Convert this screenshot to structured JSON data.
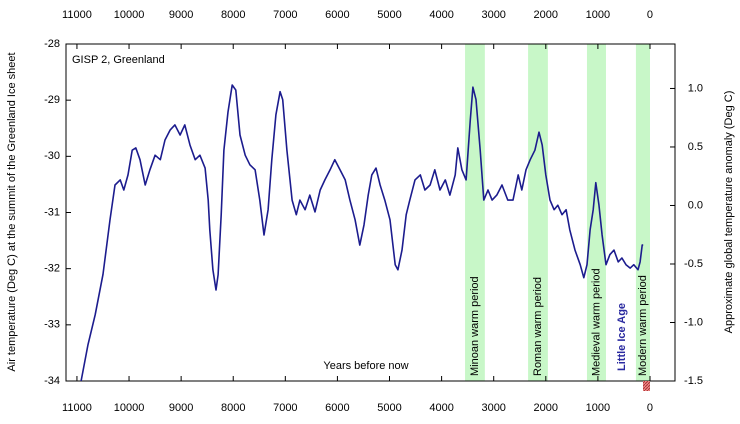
{
  "chart_data": {
    "type": "line",
    "annotation": "GISP 2, Greenland",
    "x_label": "Years before now",
    "y_label": "Air temperature (Deg C) at the summit of the Greenland Ice sheet",
    "y2_label": "Approximate global temperature anomaly (Deg C)",
    "color": "#1c1c8e",
    "band_color": "#c8f7c8",
    "x": [
      10920,
      10790,
      10650,
      10500,
      10365,
      10270,
      10170,
      10100,
      10020,
      9940,
      9870,
      9790,
      9690,
      9600,
      9500,
      9400,
      9310,
      9210,
      9120,
      9020,
      8930,
      8830,
      8730,
      8640,
      8540,
      8480,
      8450,
      8390,
      8330,
      8290,
      8230,
      8180,
      8100,
      8020,
      7950,
      7870,
      7770,
      7680,
      7580,
      7490,
      7410,
      7330,
      7260,
      7180,
      7100,
      7050,
      6970,
      6870,
      6790,
      6720,
      6620,
      6530,
      6430,
      6330,
      6240,
      6140,
      6050,
      5950,
      5850,
      5760,
      5660,
      5570,
      5490,
      5410,
      5340,
      5260,
      5180,
      5090,
      4990,
      4890,
      4840,
      4760,
      4680,
      4610,
      4510,
      4410,
      4320,
      4220,
      4130,
      4030,
      3930,
      3840,
      3740,
      3690,
      3610,
      3530,
      3450,
      3400,
      3340,
      3260,
      3190,
      3110,
      3030,
      2940,
      2840,
      2730,
      2630,
      2530,
      2460,
      2380,
      2300,
      2210,
      2130,
      2070,
      2000,
      1920,
      1840,
      1770,
      1690,
      1610,
      1540,
      1440,
      1340,
      1270,
      1210,
      1150,
      1090,
      1040,
      980,
      920,
      845,
      770,
      690,
      610,
      540,
      460,
      380,
      310,
      230,
      190,
      150,
      130
    ],
    "values": [
      -34.0,
      -33.36,
      -32.82,
      -32.1,
      -31.13,
      -30.51,
      -30.42,
      -30.6,
      -30.33,
      -29.89,
      -29.85,
      -30.06,
      -30.51,
      -30.24,
      -29.98,
      -30.06,
      -29.71,
      -29.53,
      -29.44,
      -29.62,
      -29.44,
      -29.8,
      -30.06,
      -29.98,
      -30.21,
      -30.78,
      -31.31,
      -32.02,
      -32.38,
      -32.11,
      -31.04,
      -29.89,
      -29.21,
      -28.73,
      -28.82,
      -29.62,
      -29.98,
      -30.15,
      -30.24,
      -30.78,
      -31.4,
      -30.95,
      -30.06,
      -29.26,
      -28.85,
      -28.99,
      -29.89,
      -30.78,
      -31.04,
      -30.78,
      -30.95,
      -30.69,
      -30.99,
      -30.6,
      -30.42,
      -30.24,
      -30.06,
      -30.24,
      -30.42,
      -30.78,
      -31.13,
      -31.58,
      -31.22,
      -30.69,
      -30.33,
      -30.21,
      -30.51,
      -30.78,
      -31.13,
      -31.93,
      -32.02,
      -31.67,
      -31.04,
      -30.78,
      -30.42,
      -30.33,
      -30.6,
      -30.51,
      -30.24,
      -30.6,
      -30.42,
      -30.69,
      -30.33,
      -29.85,
      -30.24,
      -30.42,
      -29.35,
      -28.77,
      -28.99,
      -29.89,
      -30.78,
      -30.6,
      -30.78,
      -30.69,
      -30.51,
      -30.78,
      -30.78,
      -30.33,
      -30.6,
      -30.24,
      -30.06,
      -29.89,
      -29.57,
      -29.8,
      -30.33,
      -30.78,
      -30.95,
      -30.87,
      -31.04,
      -30.95,
      -31.31,
      -31.67,
      -31.93,
      -32.16,
      -31.93,
      -31.31,
      -30.95,
      -30.47,
      -30.86,
      -31.4,
      -31.93,
      -31.75,
      -31.67,
      -31.88,
      -31.81,
      -31.93,
      -31.99,
      -31.93,
      -32.02,
      -31.88,
      -31.58,
      -31.58
    ],
    "xlim": [
      11210,
      -480
    ],
    "xticks": [
      11000,
      10000,
      9000,
      8000,
      7000,
      6000,
      5000,
      4000,
      3000,
      2000,
      1000,
      0
    ],
    "ylim": [
      -34,
      -28
    ],
    "yticks": [
      -28,
      -29,
      -30,
      -31,
      -32,
      -33,
      -34
    ],
    "y2lim": [
      -1.5,
      1.38
    ],
    "y2ticks": [
      {
        "value": 1,
        "label": "1.0"
      },
      0.5,
      {
        "value": 0,
        "label": "0.0"
      },
      -0.5,
      {
        "value": -1,
        "label": "-1.0"
      },
      -1.5
    ],
    "periods": [
      {
        "label": "Minoan warm period",
        "from": 3550,
        "to": 3170
      },
      {
        "label": "Roman warm period",
        "from": 2340,
        "to": 1960
      },
      {
        "label": "Medieval warm period",
        "from": 1210,
        "to": 845
      },
      {
        "label": "Modern warm period",
        "from": 270,
        "to": 0
      }
    ],
    "period_note": "Little Ice Age"
  }
}
